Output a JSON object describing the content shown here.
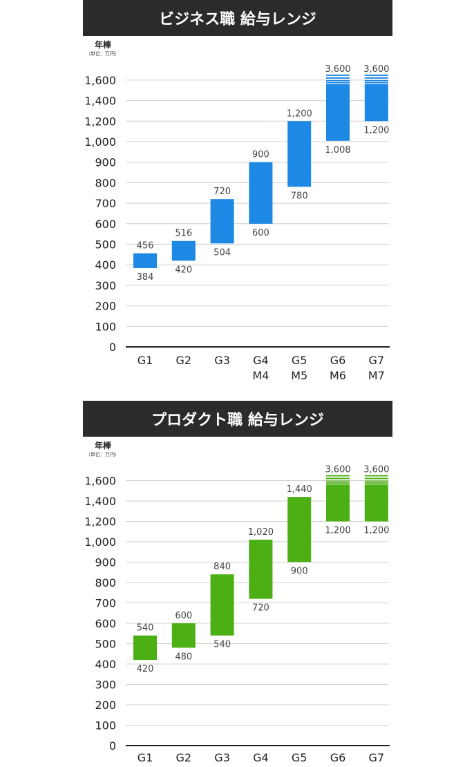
{
  "chart_data": [
    {
      "type": "bar",
      "subtype": "floating-range",
      "title": "ビジネス職 給与レンジ",
      "ylabel": "年棒",
      "yunit": "（単位：万円）",
      "yticks": [
        "1,600",
        "1,400",
        "1,200",
        "1,000",
        "900",
        "800",
        "700",
        "600",
        "500",
        "400",
        "300",
        "200",
        "100",
        "0"
      ],
      "axis_break_above": 900,
      "grid": true,
      "categories": [
        [
          "G1"
        ],
        [
          "G2"
        ],
        [
          "G3"
        ],
        [
          "G4",
          "M4"
        ],
        [
          "G5",
          "M5"
        ],
        [
          "G6",
          "M6"
        ],
        [
          "G7",
          "M7"
        ]
      ],
      "low": [
        384,
        420,
        504,
        600,
        780,
        1008,
        1200
      ],
      "high": [
        456,
        516,
        720,
        900,
        1200,
        3600,
        3600
      ],
      "low_labels": [
        "384",
        "420",
        "504",
        "600",
        "780",
        "1,008",
        "1,200"
      ],
      "high_labels": [
        "456",
        "516",
        "720",
        "900",
        "1,200",
        "3,600",
        "3,600"
      ],
      "truncated": [
        false,
        false,
        false,
        false,
        false,
        true,
        true
      ],
      "color": "#1e88e5"
    },
    {
      "type": "bar",
      "subtype": "floating-range",
      "title": "プロダクト職 給与レンジ",
      "ylabel": "年棒",
      "yunit": "（単位：万円）",
      "yticks": [
        "1,600",
        "1,400",
        "1,200",
        "1,000",
        "900",
        "800",
        "700",
        "600",
        "500",
        "400",
        "300",
        "200",
        "100",
        "0"
      ],
      "axis_break_above": 900,
      "grid": true,
      "categories": [
        [
          "G1"
        ],
        [
          "G2"
        ],
        [
          "G3"
        ],
        [
          "G4"
        ],
        [
          "G5"
        ],
        [
          "G6"
        ],
        [
          "G7"
        ]
      ],
      "low": [
        420,
        480,
        540,
        720,
        900,
        1200,
        1200
      ],
      "high": [
        540,
        600,
        840,
        1020,
        1440,
        3600,
        3600
      ],
      "low_labels": [
        "420",
        "480",
        "540",
        "720",
        "900",
        "1,200",
        "1,200"
      ],
      "high_labels": [
        "540",
        "600",
        "840",
        "1,020",
        "1,440",
        "3,600",
        "3,600"
      ],
      "truncated": [
        false,
        false,
        false,
        false,
        false,
        true,
        true
      ],
      "color": "#4caf14"
    }
  ]
}
